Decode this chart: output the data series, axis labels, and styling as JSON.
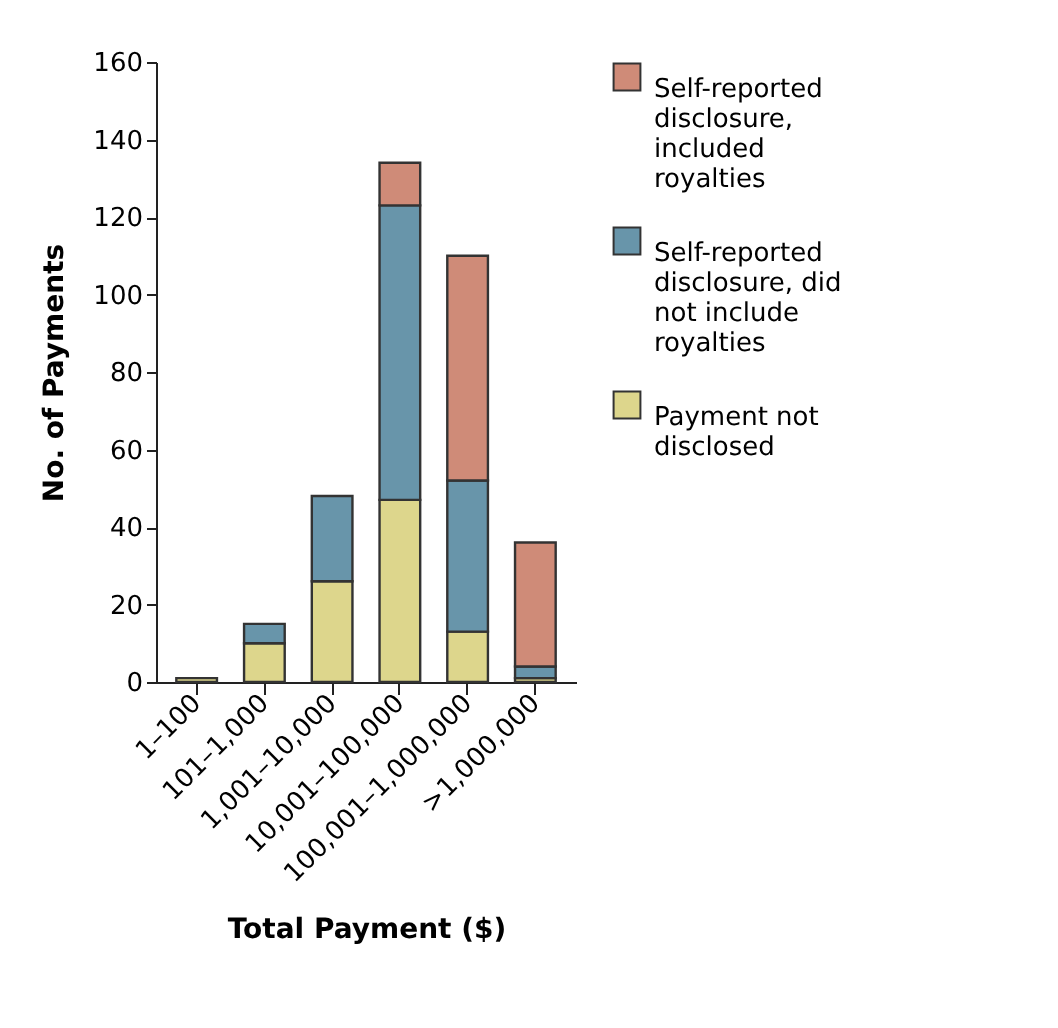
{
  "chart_data": {
    "type": "bar",
    "stacked": true,
    "xlabel": "Total Payment ($)",
    "ylabel": "No. of Payments",
    "categories": [
      "1–100",
      "101–1,000",
      "1,001–10,000",
      "10,001–100,000",
      "100,001–1,000,000",
      ">1,000,000"
    ],
    "series": [
      {
        "name": "Payment not disclosed",
        "color": "#ddd68c",
        "values": [
          1,
          10,
          26,
          47,
          13,
          1
        ]
      },
      {
        "name": "Self-reported disclosure, did not include royalties",
        "color": "#6895aa",
        "values": [
          0,
          5,
          22,
          76,
          39,
          3
        ]
      },
      {
        "name": "Self-reported disclosure, included royalties",
        "color": "#cf8b78",
        "values": [
          0,
          0,
          0,
          11,
          58,
          32
        ]
      }
    ],
    "ylim": [
      0,
      160
    ],
    "yticks": [
      0,
      20,
      40,
      60,
      80,
      100,
      120,
      140,
      160
    ],
    "grid": false,
    "legend": "top right"
  }
}
